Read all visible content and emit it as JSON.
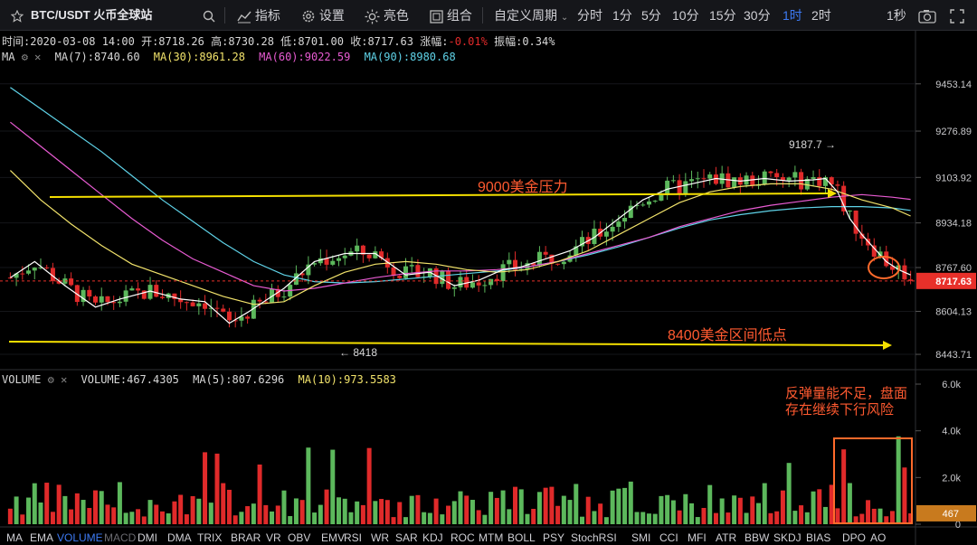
{
  "toolbar": {
    "symbol": "BTC/USDT 火币全球站",
    "indicator": "指标",
    "settings": "设置",
    "theme": "亮色",
    "combo": "组合",
    "custom_period": "自定义周期",
    "periods": [
      "分时",
      "1分",
      "5分",
      "10分",
      "15分",
      "30分",
      "1时",
      "2时"
    ],
    "active_period": "1时",
    "second": "1秒"
  },
  "info": {
    "time_label": "时间:",
    "time": "2020-03-08 14:00",
    "open_label": "开:",
    "open": "8718.26",
    "high_label": "高:",
    "high": "8730.28",
    "low_label": "低:",
    "low": "8701.00",
    "close_label": "收:",
    "close": "8717.63",
    "change_label": "涨幅:",
    "change": "-0.01%",
    "amp_label": "振幅:",
    "amp": "0.34%"
  },
  "ma": {
    "label": "MA",
    "items": [
      {
        "text": "MA(7):8740.60",
        "color": "#ffffff"
      },
      {
        "text": "MA(30):8961.28",
        "color": "#f2e36b"
      },
      {
        "text": "MA(60):9022.59",
        "color": "#e85bd2"
      },
      {
        "text": "MA(90):8980.68",
        "color": "#5fd3e8"
      }
    ]
  },
  "vol": {
    "label": "VOLUME",
    "items": [
      {
        "text": "VOLUME:467.4305",
        "color": "#ffffff"
      },
      {
        "text": "MA(5):807.6296",
        "color": "#ffffff"
      },
      {
        "text": "MA(10):973.5583",
        "color": "#f2e36b"
      }
    ]
  },
  "annotations": {
    "resistance": "9000美金压力",
    "support": "8400美金区间低点",
    "high_mark": "9187.7",
    "low_mark": "8418",
    "note_line1": "反弹量能不足，盘面",
    "note_line2": "存在继续下行风险"
  },
  "tabs": [
    "MA",
    "EMA",
    "VOLUME",
    "MACD",
    "DMI",
    "DMA",
    "TRIX",
    "BRAR",
    "VR",
    "OBV",
    "EMV",
    "RSI",
    "WR",
    "SAR",
    "KDJ",
    "ROC",
    "MTM",
    "BOLL",
    "PSY",
    "StochRSI",
    "SMI",
    "CCI",
    "MFI",
    "ATR",
    "BBW",
    "SKDJ",
    "BIAS",
    "DPO",
    "AO"
  ],
  "active_tab": "VOLUME",
  "colors": {
    "up": "#5cb85c",
    "down": "#e02a2a",
    "accent": "#3d7bf5",
    "highlight": "#ff6a2b",
    "price_tag": "#e8302a",
    "vol_tag": "#c87a1e"
  },
  "chart_data": {
    "type": "candlestick",
    "price_axis": [
      "9453.14",
      "9276.89",
      "9103.92",
      "8934.18",
      "8767.60",
      "8604.13",
      "8443.71"
    ],
    "last_price": "8717.63",
    "volume_axis": [
      "6.0k",
      "4.0k",
      "2.0k",
      "0"
    ],
    "last_volume": "467",
    "ma7_points": [
      [
        0,
        8730
      ],
      [
        4,
        8790
      ],
      [
        9,
        8700
      ],
      [
        14,
        8620
      ],
      [
        18,
        8650
      ],
      [
        23,
        8680
      ],
      [
        28,
        8650
      ],
      [
        32,
        8640
      ],
      [
        36,
        8560
      ],
      [
        39,
        8600
      ],
      [
        45,
        8690
      ],
      [
        50,
        8790
      ],
      [
        55,
        8820
      ],
      [
        60,
        8820
      ],
      [
        65,
        8740
      ],
      [
        69,
        8750
      ],
      [
        73,
        8700
      ],
      [
        77,
        8720
      ],
      [
        81,
        8760
      ],
      [
        84,
        8770
      ],
      [
        88,
        8800
      ],
      [
        92,
        8830
      ],
      [
        96,
        8880
      ],
      [
        100,
        8950
      ],
      [
        104,
        9020
      ],
      [
        108,
        9060
      ],
      [
        112,
        9080
      ],
      [
        116,
        9100
      ],
      [
        120,
        9090
      ],
      [
        124,
        9100
      ],
      [
        128,
        9090
      ],
      [
        132,
        9095
      ],
      [
        134,
        9100
      ],
      [
        136,
        9050
      ],
      [
        138,
        8950
      ],
      [
        140,
        8890
      ],
      [
        142,
        8840
      ],
      [
        144,
        8790
      ],
      [
        146,
        8760
      ],
      [
        148,
        8740
      ]
    ],
    "ma30_points": [
      [
        0,
        9130
      ],
      [
        5,
        9020
      ],
      [
        10,
        8930
      ],
      [
        15,
        8850
      ],
      [
        20,
        8780
      ],
      [
        25,
        8740
      ],
      [
        30,
        8700
      ],
      [
        35,
        8660
      ],
      [
        40,
        8630
      ],
      [
        45,
        8640
      ],
      [
        50,
        8700
      ],
      [
        55,
        8750
      ],
      [
        60,
        8780
      ],
      [
        65,
        8790
      ],
      [
        70,
        8780
      ],
      [
        75,
        8760
      ],
      [
        80,
        8750
      ],
      [
        85,
        8760
      ],
      [
        90,
        8790
      ],
      [
        95,
        8830
      ],
      [
        100,
        8890
      ],
      [
        105,
        8950
      ],
      [
        110,
        9010
      ],
      [
        115,
        9050
      ],
      [
        120,
        9070
      ],
      [
        125,
        9080
      ],
      [
        130,
        9080
      ],
      [
        135,
        9060
      ],
      [
        140,
        9020
      ],
      [
        145,
        8990
      ],
      [
        148,
        8960
      ]
    ],
    "ma60_points": [
      [
        0,
        9310
      ],
      [
        5,
        9220
      ],
      [
        10,
        9130
      ],
      [
        15,
        9040
      ],
      [
        20,
        8950
      ],
      [
        25,
        8870
      ],
      [
        30,
        8800
      ],
      [
        35,
        8750
      ],
      [
        40,
        8700
      ],
      [
        45,
        8680
      ],
      [
        50,
        8690
      ],
      [
        55,
        8710
      ],
      [
        60,
        8730
      ],
      [
        65,
        8745
      ],
      [
        70,
        8755
      ],
      [
        75,
        8755
      ],
      [
        80,
        8760
      ],
      [
        85,
        8770
      ],
      [
        90,
        8790
      ],
      [
        95,
        8820
      ],
      [
        100,
        8850
      ],
      [
        105,
        8880
      ],
      [
        110,
        8920
      ],
      [
        115,
        8950
      ],
      [
        120,
        8980
      ],
      [
        125,
        9000
      ],
      [
        130,
        9015
      ],
      [
        135,
        9030
      ],
      [
        140,
        9040
      ],
      [
        145,
        9030
      ],
      [
        148,
        9022
      ]
    ],
    "ma90_points": [
      [
        0,
        9440
      ],
      [
        5,
        9360
      ],
      [
        10,
        9280
      ],
      [
        15,
        9200
      ],
      [
        20,
        9110
      ],
      [
        25,
        9020
      ],
      [
        30,
        8940
      ],
      [
        35,
        8860
      ],
      [
        40,
        8790
      ],
      [
        45,
        8740
      ],
      [
        50,
        8715
      ],
      [
        55,
        8710
      ],
      [
        60,
        8715
      ],
      [
        65,
        8725
      ],
      [
        70,
        8735
      ],
      [
        75,
        8745
      ],
      [
        80,
        8755
      ],
      [
        85,
        8770
      ],
      [
        90,
        8790
      ],
      [
        95,
        8815
      ],
      [
        100,
        8845
      ],
      [
        105,
        8880
      ],
      [
        110,
        8915
      ],
      [
        115,
        8945
      ],
      [
        120,
        8965
      ],
      [
        125,
        8980
      ],
      [
        130,
        8990
      ],
      [
        135,
        8995
      ],
      [
        140,
        8995
      ],
      [
        145,
        8990
      ],
      [
        148,
        8981
      ]
    ],
    "candle_count": 149,
    "ylim": [
      8400,
      9530
    ],
    "vol_ylim": [
      0,
      6000
    ]
  }
}
